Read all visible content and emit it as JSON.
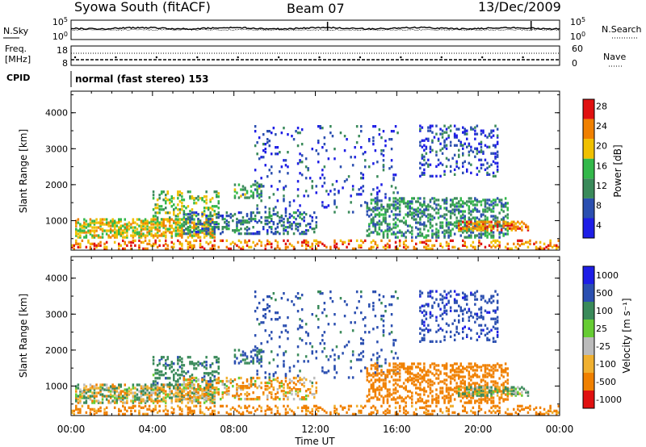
{
  "header": {
    "station": "Syowa South (fitACF)",
    "beam": "Beam 07",
    "date": "13/Dec/2009"
  },
  "labels": {
    "nsky": "N.Sky",
    "nsearch": "N.Search",
    "freq_line1": "Freq.",
    "freq_line2": "[MHz]",
    "nave": "Nave",
    "cpid": "CPID",
    "cpid_value": "normal (fast stereo) 153",
    "x_axis": "Time UT",
    "y_axis": "Slant Range [km]",
    "power_colorbar": "Power [dB]",
    "velocity_colorbar": "Velocity [m s⁻¹]"
  },
  "noise_panel": {
    "left_ticks": [
      "10^5",
      "10^0"
    ],
    "right_ticks": [
      "10^5",
      "10^0"
    ]
  },
  "freq_panel": {
    "left_ticks": [
      "18",
      "8"
    ],
    "right_ticks": [
      "60",
      "0"
    ]
  },
  "chart_data": {
    "type": "heatmap",
    "x_ticks": [
      "00:00",
      "04:00",
      "08:00",
      "12:00",
      "16:00",
      "20:00",
      "00:00"
    ],
    "x_range_hours": [
      0,
      24
    ],
    "y_ticks": [
      "1000",
      "2000",
      "3000",
      "4000"
    ],
    "y_range_km": [
      180,
      4600
    ],
    "power": {
      "colorbar_ticks": [
        "4",
        "8",
        "12",
        "16",
        "20",
        "24",
        "28"
      ],
      "range_db": [
        0,
        32
      ],
      "colors": [
        "#1e1ee6",
        "#2b4fb0",
        "#3a8a5a",
        "#33b84a",
        "#f0c000",
        "#f08000",
        "#e01010"
      ]
    },
    "velocity": {
      "colorbar_ticks": [
        "1000",
        "500",
        "100",
        "25",
        "-25",
        "-100",
        "-500",
        "-1000"
      ],
      "colors": [
        "#1e1ee6",
        "#2b4fb0",
        "#3a8a5a",
        "#66cc33",
        "#bbbbbb",
        "#f0b030",
        "#f08000",
        "#e01010"
      ]
    },
    "scatter_regions": [
      {
        "t": [
          0.2,
          7.0
        ],
        "r": [
          500,
          1000
        ],
        "density": 0.55,
        "power": 18,
        "vel": 0
      },
      {
        "t": [
          4.0,
          7.2
        ],
        "r": [
          1000,
          1800
        ],
        "density": 0.25,
        "power": 14,
        "vel": 200
      },
      {
        "t": [
          8.0,
          9.3
        ],
        "r": [
          1600,
          2000
        ],
        "density": 0.35,
        "power": 12,
        "vel": 300
      },
      {
        "t": [
          5.5,
          12.0
        ],
        "r": [
          600,
          1200
        ],
        "density": 0.3,
        "power": 8,
        "vel": -80
      },
      {
        "t": [
          9.0,
          16.0
        ],
        "r": [
          1200,
          3600
        ],
        "density": 0.06,
        "power": 5,
        "vel": 400
      },
      {
        "t": [
          14.5,
          21.5
        ],
        "r": [
          500,
          1600
        ],
        "density": 0.35,
        "power": 10,
        "vel": -300
      },
      {
        "t": [
          17.0,
          21.0
        ],
        "r": [
          2200,
          3600
        ],
        "density": 0.18,
        "power": 5,
        "vel": 600
      },
      {
        "t": [
          0.0,
          24.0
        ],
        "r": [
          180,
          450
        ],
        "density": 0.25,
        "power": 22,
        "vel": -200
      },
      {
        "t": [
          19.0,
          22.5
        ],
        "r": [
          700,
          950
        ],
        "density": 0.45,
        "power": 22,
        "vel": 50
      }
    ]
  }
}
